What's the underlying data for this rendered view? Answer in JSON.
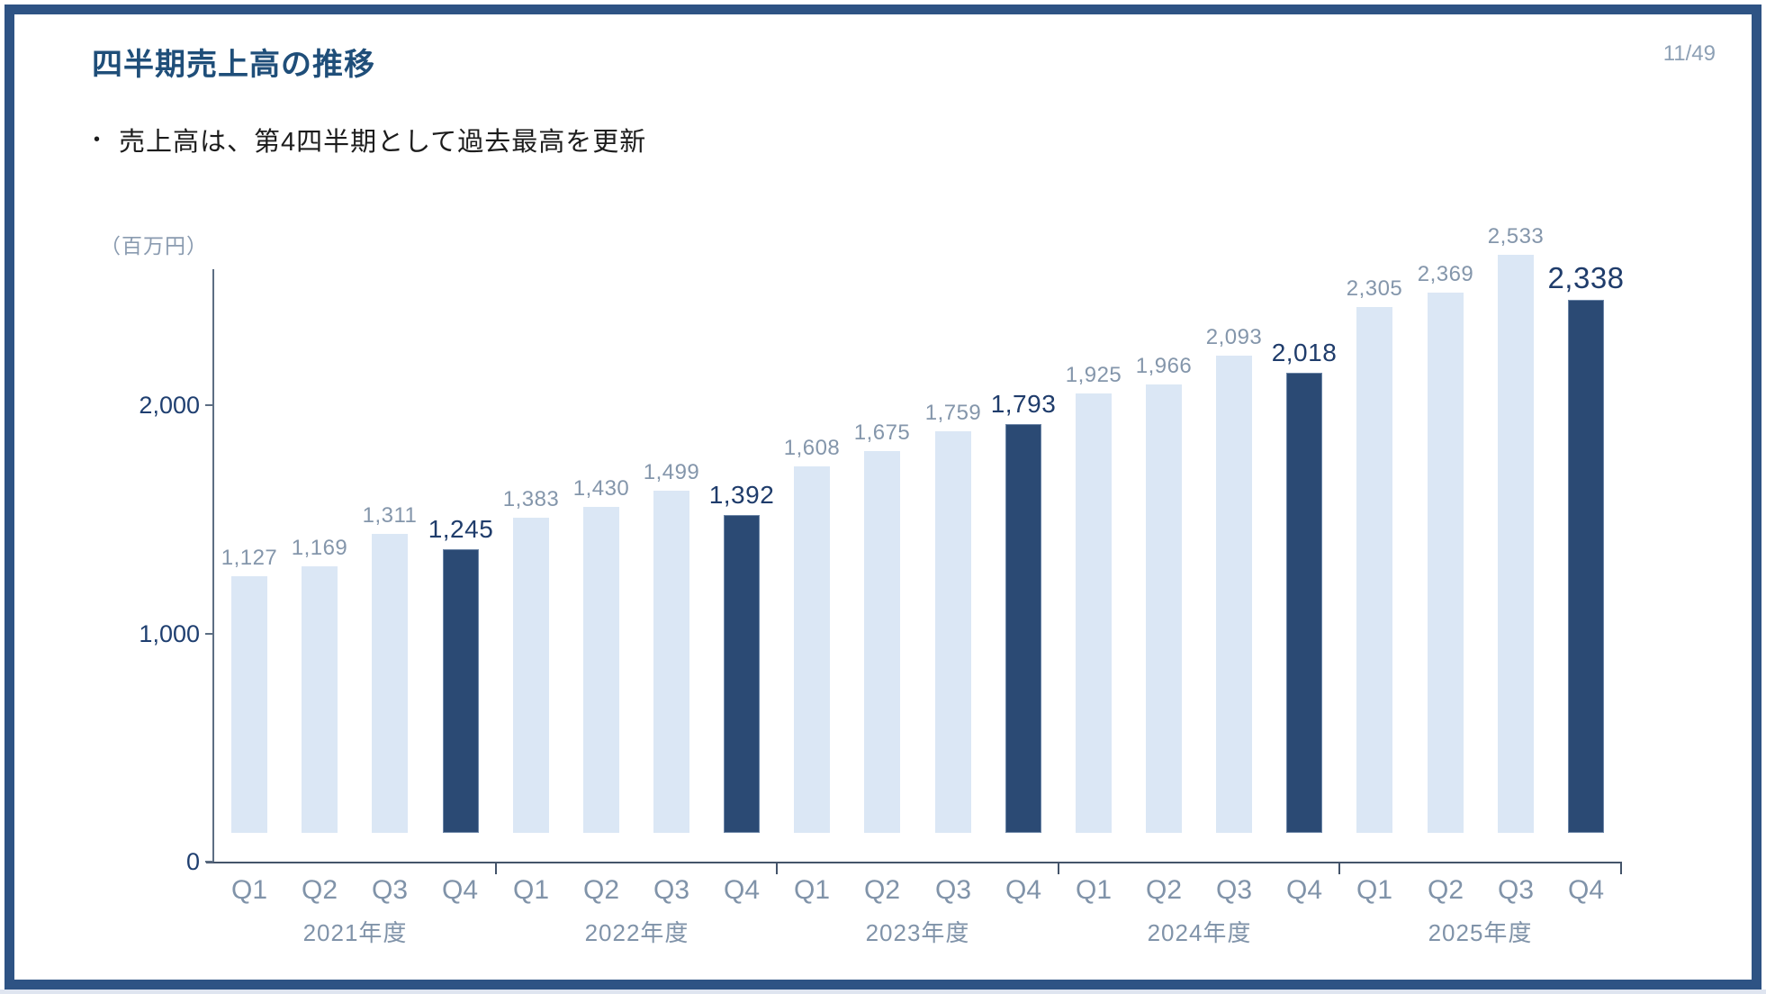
{
  "slide": {
    "title": "四半期売上高の推移",
    "page_number": "11/49",
    "bullet": {
      "marker": "•",
      "text": "売上高は、第4四半期として過去最高を更新"
    },
    "colors": {
      "slide_border": "#2e5384",
      "title_text": "#1f4e79",
      "bar_light": "#dbe7f5",
      "bar_dark": "#2b4a74",
      "muted_label": "#8496ab",
      "dark_label": "#1f3c6b",
      "axis": "#44546a"
    }
  },
  "chart_data": {
    "type": "bar",
    "title": "四半期売上高の推移",
    "unit_label": "（百万円）",
    "ylabel": "百万円",
    "ylim": [
      0,
      2600
    ],
    "yticks": [
      0,
      1000,
      2000
    ],
    "ytick_labels": [
      "0",
      "1,000",
      "2,000"
    ],
    "grid": false,
    "legend": "none",
    "quarter_labels": [
      "Q1",
      "Q2",
      "Q3",
      "Q4"
    ],
    "highlight_quarter": "Q4",
    "highlight_style": "Q4 bars dark navy, Q1-Q3 bars light blue",
    "groups": [
      {
        "year": "2021年度",
        "values": [
          1127,
          1169,
          1311,
          1245
        ],
        "labels": [
          "1,127",
          "1,169",
          "1,311",
          "1,245"
        ]
      },
      {
        "year": "2022年度",
        "values": [
          1383,
          1430,
          1499,
          1392
        ],
        "labels": [
          "1,383",
          "1,430",
          "1,499",
          "1,392"
        ]
      },
      {
        "year": "2023年度",
        "values": [
          1608,
          1675,
          1759,
          1793
        ],
        "labels": [
          "1,608",
          "1,675",
          "1,759",
          "1,793"
        ]
      },
      {
        "year": "2024年度",
        "values": [
          1925,
          1966,
          2093,
          2018
        ],
        "labels": [
          "1,925",
          "1,966",
          "2,093",
          "2,018"
        ]
      },
      {
        "year": "2025年度",
        "values": [
          2305,
          2369,
          2533,
          2338
        ],
        "labels": [
          "2,305",
          "2,369",
          "2,533",
          "2,338"
        ]
      }
    ]
  }
}
